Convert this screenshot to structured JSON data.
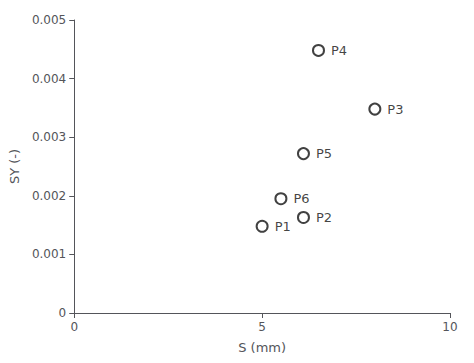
{
  "chart_data": {
    "type": "scatter",
    "x": [
      5.0,
      6.1,
      8.0,
      6.5,
      6.1,
      5.5
    ],
    "values": [
      0.00148,
      0.00163,
      0.00348,
      0.00448,
      0.00272,
      0.00195
    ],
    "labels": [
      "P1",
      "P2",
      "P3",
      "P4",
      "P5",
      "P6"
    ],
    "xlabel": "S (mm)",
    "ylabel": "SY (-)",
    "xlim": [
      0,
      10
    ],
    "ylim": [
      0,
      0.005
    ],
    "xticks": [
      0,
      5,
      10
    ],
    "yticks": [
      0,
      0.001,
      0.002,
      0.003,
      0.004,
      0.005
    ],
    "marker": "open_circle",
    "color": "#111111",
    "grid": false
  }
}
